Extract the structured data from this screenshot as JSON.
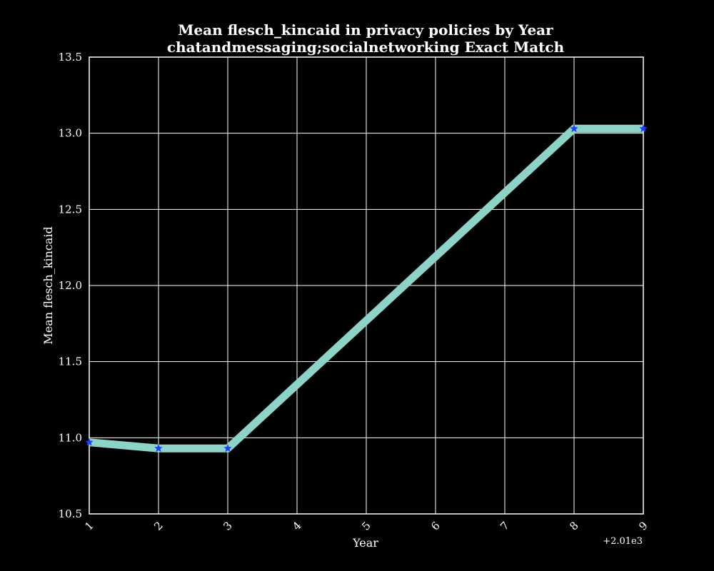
{
  "chart_data": {
    "type": "line",
    "title": "Mean flesch_kincaid in privacy policies by Year",
    "subtitle": "chatandmessaging;socialnetworking Exact Match",
    "xlabel": "Year",
    "ylabel": "Mean flesch_kincaid",
    "x_offset_label": "+2.01e3",
    "x_tick_labels": [
      "1",
      "2",
      "3",
      "4",
      "5",
      "6",
      "7",
      "8",
      "9"
    ],
    "y_tick_labels": [
      "10.5",
      "11.0",
      "11.5",
      "12.0",
      "12.5",
      "13.0",
      "13.5"
    ],
    "xlim": [
      2011,
      2019
    ],
    "ylim": [
      10.5,
      13.5
    ],
    "grid": true,
    "series": [
      {
        "x": [
          2011,
          2012,
          2013,
          2018,
          2019
        ],
        "values": [
          10.97,
          10.93,
          10.93,
          13.03,
          13.03
        ],
        "line_color": "#8dd3c7",
        "marker_color": "#1f3cff",
        "marker": "star"
      }
    ]
  }
}
